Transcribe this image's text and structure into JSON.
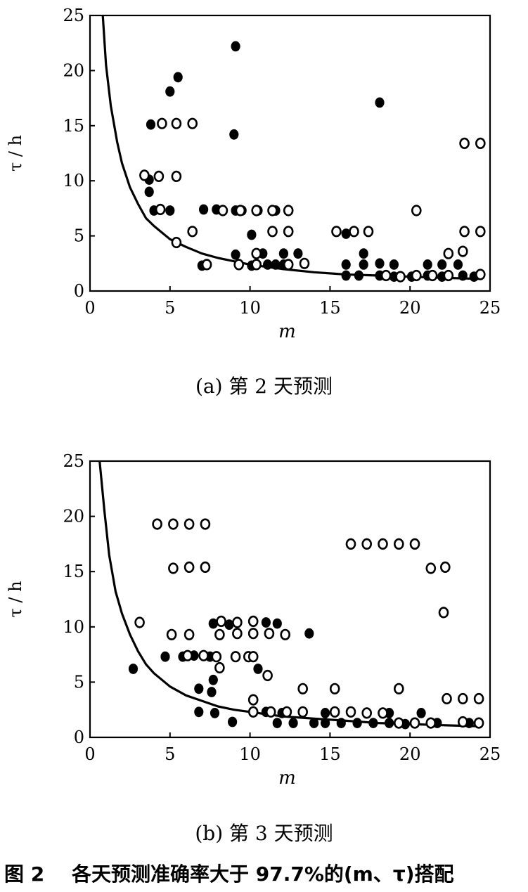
{
  "figure_title": {
    "number": "图 2",
    "text": "各天预测准确率大于 97.7%的(m、τ)搭配"
  },
  "chart_data": [
    {
      "type": "scatter",
      "caption": "(a) 第 2 天预测",
      "xlabel": "m",
      "ylabel": "τ / h",
      "xlim": [
        0,
        25
      ],
      "ylim": [
        0,
        25
      ],
      "xticks": [
        0,
        5,
        10,
        15,
        20,
        25
      ],
      "yticks": [
        0,
        5,
        10,
        15,
        20,
        25
      ],
      "grid": false,
      "curve": {
        "style": "solid line",
        "points": [
          [
            0.8,
            25
          ],
          [
            1,
            20.5
          ],
          [
            1.3,
            16.8
          ],
          [
            1.7,
            13.5
          ],
          [
            2,
            11.6
          ],
          [
            2.5,
            9.4
          ],
          [
            3,
            7.9
          ],
          [
            3.5,
            6.6
          ],
          [
            4,
            5.9
          ],
          [
            5,
            4.7
          ],
          [
            6,
            4.0
          ],
          [
            7,
            3.4
          ],
          [
            8,
            3.0
          ],
          [
            9,
            2.7
          ],
          [
            10,
            2.4
          ],
          [
            12,
            2.0
          ],
          [
            14,
            1.7
          ],
          [
            16,
            1.5
          ],
          [
            18,
            1.4
          ],
          [
            20,
            1.3
          ],
          [
            22,
            1.2
          ],
          [
            24.5,
            1.1
          ]
        ]
      },
      "series": [
        {
          "marker": "filled",
          "points": [
            [
              9.1,
              22.2
            ],
            [
              5.5,
              19.4
            ],
            [
              5,
              18.1
            ],
            [
              18.1,
              17.1
            ],
            [
              3.8,
              15.1
            ],
            [
              9,
              14.2
            ],
            [
              3.7,
              10.1
            ],
            [
              3.7,
              9.0
            ],
            [
              4,
              7.3
            ],
            [
              5,
              7.3
            ],
            [
              7.1,
              7.4
            ],
            [
              7.9,
              7.4
            ],
            [
              9.1,
              7.3
            ],
            [
              9.5,
              7.3
            ],
            [
              10.5,
              7.3
            ],
            [
              11.6,
              7.3
            ],
            [
              10.1,
              5.1
            ],
            [
              7,
              2.3
            ],
            [
              9.1,
              3.3
            ],
            [
              10.1,
              2.3
            ],
            [
              10.8,
              3.4
            ],
            [
              11.1,
              2.4
            ],
            [
              11.6,
              2.4
            ],
            [
              12.1,
              3.4
            ],
            [
              12.1,
              2.4
            ],
            [
              13,
              3.4
            ],
            [
              16,
              5.2
            ],
            [
              16,
              2.4
            ],
            [
              16,
              1.4
            ],
            [
              16.8,
              1.4
            ],
            [
              17.1,
              3.4
            ],
            [
              17.1,
              2.4
            ],
            [
              18.1,
              2.5
            ],
            [
              18.1,
              1.4
            ],
            [
              19,
              2.4
            ],
            [
              19,
              1.3
            ],
            [
              20.1,
              1.3
            ],
            [
              21.1,
              2.4
            ],
            [
              21.1,
              1.4
            ],
            [
              22,
              2.4
            ],
            [
              22,
              1.3
            ],
            [
              23,
              2.4
            ],
            [
              23.3,
              1.4
            ],
            [
              24,
              1.3
            ]
          ]
        },
        {
          "marker": "open",
          "points": [
            [
              4.5,
              15.2
            ],
            [
              5.4,
              15.2
            ],
            [
              6.4,
              15.2
            ],
            [
              3.4,
              10.5
            ],
            [
              4.3,
              10.4
            ],
            [
              5.4,
              10.4
            ],
            [
              4.4,
              7.4
            ],
            [
              8.3,
              7.3
            ],
            [
              9.4,
              7.3
            ],
            [
              10.4,
              7.3
            ],
            [
              11.4,
              7.3
            ],
            [
              12.4,
              7.3
            ],
            [
              6.4,
              5.4
            ],
            [
              11.4,
              5.4
            ],
            [
              12.4,
              5.4
            ],
            [
              15.4,
              5.4
            ],
            [
              16.5,
              5.4
            ],
            [
              17.4,
              5.4
            ],
            [
              5.4,
              4.4
            ],
            [
              7.3,
              2.4
            ],
            [
              9.3,
              2.4
            ],
            [
              10.4,
              3.4
            ],
            [
              10.4,
              2.4
            ],
            [
              12.4,
              2.4
            ],
            [
              13.4,
              2.5
            ],
            [
              18.5,
              1.4
            ],
            [
              19.4,
              1.3
            ],
            [
              20.4,
              7.3
            ],
            [
              20.4,
              1.4
            ],
            [
              21.4,
              1.4
            ],
            [
              22.4,
              3.4
            ],
            [
              22.4,
              1.4
            ],
            [
              23.3,
              3.6
            ],
            [
              23.4,
              5.4
            ],
            [
              23.4,
              13.4
            ],
            [
              24.4,
              13.4
            ],
            [
              24.4,
              5.4
            ],
            [
              24.4,
              1.5
            ]
          ]
        }
      ]
    },
    {
      "type": "scatter",
      "caption": "(b) 第 3 天预测",
      "xlabel": "m",
      "ylabel": "τ / h",
      "xlim": [
        0,
        25
      ],
      "ylim": [
        0,
        25
      ],
      "xticks": [
        0,
        5,
        10,
        15,
        20,
        25
      ],
      "yticks": [
        0,
        5,
        10,
        15,
        20,
        25
      ],
      "grid": false,
      "curve": {
        "style": "solid line",
        "points": [
          [
            0.6,
            25
          ],
          [
            0.9,
            20.5
          ],
          [
            1.2,
            16.5
          ],
          [
            1.6,
            13.2
          ],
          [
            2,
            11.2
          ],
          [
            2.5,
            9.3
          ],
          [
            3,
            7.8
          ],
          [
            3.5,
            6.6
          ],
          [
            4,
            5.8
          ],
          [
            5,
            4.6
          ],
          [
            6,
            3.8
          ],
          [
            7,
            3.3
          ],
          [
            8,
            2.8
          ],
          [
            9,
            2.5
          ],
          [
            10,
            2.3
          ],
          [
            12,
            1.9
          ],
          [
            14,
            1.7
          ],
          [
            16,
            1.5
          ],
          [
            18,
            1.3
          ],
          [
            20,
            1.2
          ],
          [
            22,
            1.1
          ],
          [
            24.5,
            1.0
          ]
        ]
      },
      "series": [
        {
          "marker": "filled",
          "points": [
            [
              2.7,
              6.2
            ],
            [
              4.7,
              7.3
            ],
            [
              5.8,
              7.3
            ],
            [
              6.5,
              7.4
            ],
            [
              7.5,
              7.3
            ],
            [
              7.7,
              5.2
            ],
            [
              7.6,
              4.1
            ],
            [
              6.8,
              4.4
            ],
            [
              6.8,
              2.3
            ],
            [
              7.8,
              2.2
            ],
            [
              7.7,
              10.3
            ],
            [
              8.7,
              10.2
            ],
            [
              8.9,
              1.4
            ],
            [
              10.5,
              6.2
            ],
            [
              11,
              10.4
            ],
            [
              11.7,
              10.3
            ],
            [
              11,
              2.3
            ],
            [
              11.7,
              1.3
            ],
            [
              12,
              2.2
            ],
            [
              12.7,
              1.3
            ],
            [
              13.7,
              9.4
            ],
            [
              14,
              1.3
            ],
            [
              14.7,
              2.2
            ],
            [
              14.7,
              1.3
            ],
            [
              15.7,
              1.3
            ],
            [
              16.7,
              1.3
            ],
            [
              17.7,
              1.3
            ],
            [
              18.7,
              2.2
            ],
            [
              18.7,
              1.3
            ],
            [
              19.7,
              1.2
            ],
            [
              20.7,
              2.2
            ],
            [
              21.7,
              1.3
            ],
            [
              23.7,
              1.3
            ]
          ]
        },
        {
          "marker": "open",
          "points": [
            [
              4.2,
              19.3
            ],
            [
              5.2,
              19.3
            ],
            [
              6.2,
              19.3
            ],
            [
              7.2,
              19.3
            ],
            [
              5.2,
              15.3
            ],
            [
              6.2,
              15.4
            ],
            [
              7.2,
              15.4
            ],
            [
              3.1,
              10.4
            ],
            [
              5.1,
              9.3
            ],
            [
              6.2,
              9.3
            ],
            [
              8.2,
              10.5
            ],
            [
              9.2,
              10.4
            ],
            [
              10.2,
              10.5
            ],
            [
              8.1,
              9.3
            ],
            [
              9.2,
              9.4
            ],
            [
              10.2,
              9.4
            ],
            [
              11.2,
              9.4
            ],
            [
              12.2,
              9.3
            ],
            [
              6.1,
              7.4
            ],
            [
              7.1,
              7.4
            ],
            [
              7.9,
              7.3
            ],
            [
              9.1,
              7.3
            ],
            [
              9.9,
              7.3
            ],
            [
              10.2,
              7.3
            ],
            [
              8.1,
              6.3
            ],
            [
              11.1,
              5.6
            ],
            [
              10.2,
              3.4
            ],
            [
              10.2,
              2.3
            ],
            [
              11.3,
              2.3
            ],
            [
              12.3,
              2.3
            ],
            [
              13.3,
              2.3
            ],
            [
              13.3,
              4.4
            ],
            [
              15.3,
              4.4
            ],
            [
              15.3,
              2.3
            ],
            [
              16.3,
              2.3
            ],
            [
              17.3,
              2.2
            ],
            [
              18.3,
              2.2
            ],
            [
              19.3,
              4.4
            ],
            [
              19.3,
              1.3
            ],
            [
              20.3,
              1.3
            ],
            [
              21.3,
              1.3
            ],
            [
              16.3,
              17.5
            ],
            [
              17.3,
              17.5
            ],
            [
              18.3,
              17.5
            ],
            [
              19.3,
              17.5
            ],
            [
              20.3,
              17.5
            ],
            [
              21.3,
              15.3
            ],
            [
              22.2,
              15.4
            ],
            [
              22.1,
              11.3
            ],
            [
              22.3,
              3.5
            ],
            [
              23.3,
              3.5
            ],
            [
              24.3,
              3.5
            ],
            [
              23.3,
              1.4
            ],
            [
              24.3,
              1.3
            ]
          ]
        }
      ]
    }
  ]
}
